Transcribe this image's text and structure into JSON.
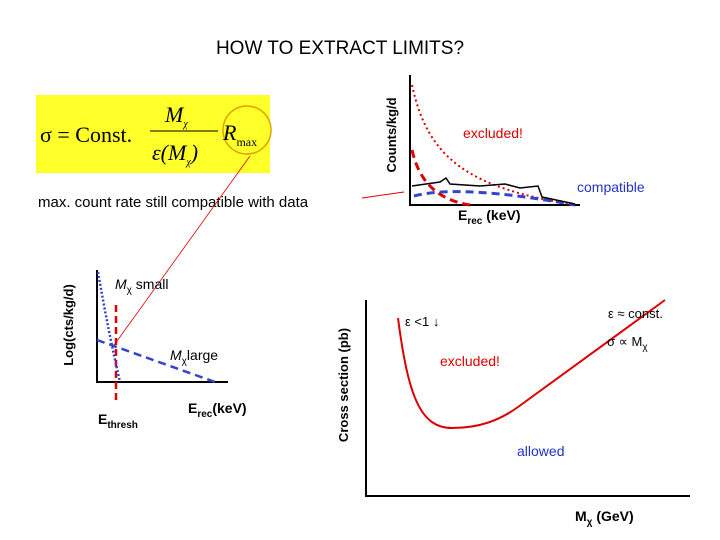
{
  "title": "HOW TO EXTRACT LIMITS?",
  "formula": {
    "lhs": "σ = Const.",
    "num_main": "M",
    "num_sub": "χ",
    "den_main": "ε(M",
    "den_sub": "χ",
    "den_end": ")",
    "r_main": "R",
    "r_sub": "max"
  },
  "caption": "max. count rate still compatible with data",
  "spectrum_plot": {
    "y_label": "Counts/kg/d",
    "x_label_main": "E",
    "x_label_sub": "rec",
    "x_label_rest": " (keV)",
    "excluded": "excluded!",
    "compatible": "compatible"
  },
  "threshold_plot": {
    "y_label": "Log(cts/kg/d)",
    "small_main": "M",
    "small_sub": "χ",
    "small_rest": " small",
    "large_main": "M",
    "large_sub": "χ",
    "large_rest": "large",
    "thresh_main": "E",
    "thresh_sub": "thresh",
    "x_label_main": "E",
    "x_label_sub": "rec",
    "x_label_rest": "(keV)"
  },
  "limit_plot": {
    "y_label": "Cross section (pb)",
    "x_label_main": "M",
    "x_label_sub": "χ",
    "x_label_rest": " (GeV)",
    "eps_low": "ε <1 ↓",
    "eps_const": "ε ≈ const.",
    "sigma_main": "σ  ∝ M",
    "sigma_sub": "χ",
    "excluded": "excluded!",
    "allowed": "allowed"
  }
}
